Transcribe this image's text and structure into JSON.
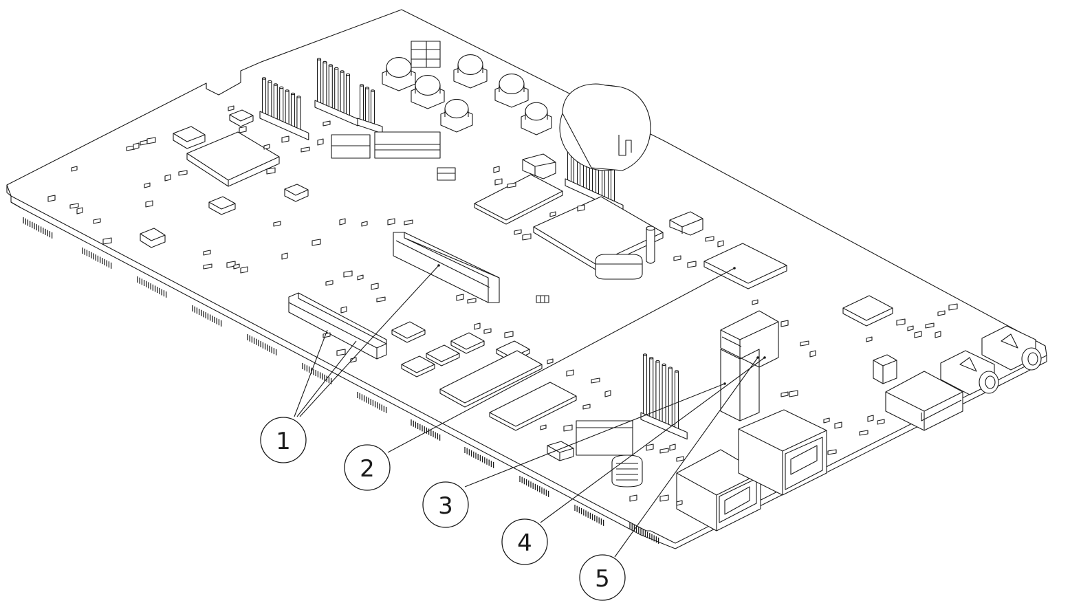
{
  "callouts": [
    {
      "label": "1"
    },
    {
      "label": "2"
    },
    {
      "label": "3"
    },
    {
      "label": "4"
    },
    {
      "label": "5"
    }
  ]
}
